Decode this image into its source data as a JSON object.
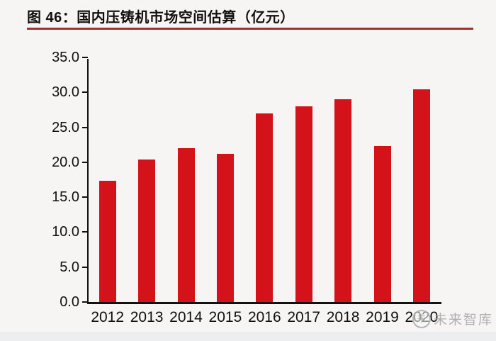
{
  "page": {
    "title": "图 46：国内压铸机市场空间估算（亿元）"
  },
  "watermark": {
    "logo_name": "weilai-zhiku-logo",
    "logo_glyph": "未",
    "text": "未来智库"
  },
  "chart_data": {
    "type": "bar",
    "title": "图 46：国内压铸机市场空间估算（亿元）",
    "unit": "亿元",
    "categories": [
      "2012",
      "2013",
      "2014",
      "2015",
      "2016",
      "2017",
      "2018",
      "2019",
      "2020"
    ],
    "values": [
      17.3,
      20.4,
      22.0,
      21.2,
      27.0,
      28.0,
      29.0,
      22.3,
      30.4
    ],
    "xlabel": "",
    "ylabel": "",
    "ylim": [
      0,
      35
    ],
    "ytick_step": 5,
    "ytick_labels": [
      "0.0",
      "5.0",
      "10.0",
      "15.0",
      "20.0",
      "25.0",
      "30.0",
      "35.0"
    ],
    "grid": false,
    "legend": null,
    "bar_color": "#d4121a",
    "axis_color": "#111111"
  },
  "colors": {
    "background": "#f6f5f3",
    "title_underline": "#9e3333",
    "bar": "#d4121a",
    "watermark_gray": "#acacb0",
    "bottom_strip": "#eceef0"
  }
}
